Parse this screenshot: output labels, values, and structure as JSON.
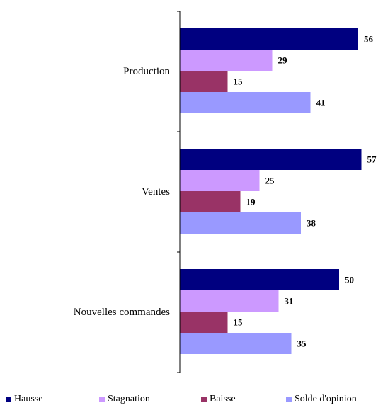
{
  "chart_data": {
    "type": "bar",
    "orientation": "horizontal",
    "categories": [
      "Production",
      "Ventes",
      "Nouvelles commandes"
    ],
    "series": [
      {
        "name": "Hausse",
        "color": "#000080",
        "values": [
          56,
          57,
          50
        ]
      },
      {
        "name": "Stagnation",
        "color": "#CC99FF",
        "values": [
          29,
          25,
          31
        ]
      },
      {
        "name": "Baisse",
        "color": "#993366",
        "values": [
          15,
          19,
          15
        ]
      },
      {
        "name": "Solde d'opinion",
        "color": "#9999FF",
        "values": [
          41,
          38,
          35
        ]
      }
    ],
    "xlim": [
      0,
      60
    ],
    "grid": false,
    "legend_position": "bottom",
    "data_labels": true
  }
}
